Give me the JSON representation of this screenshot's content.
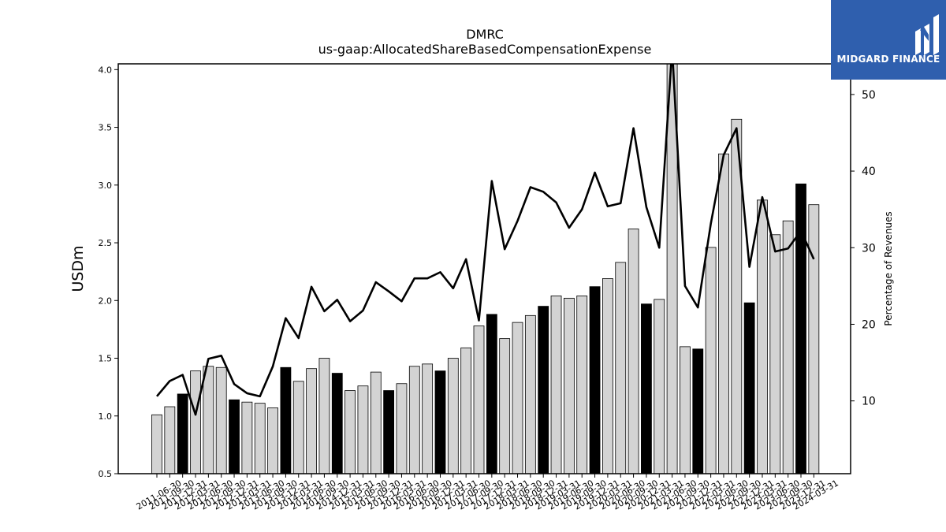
{
  "chart_data": {
    "type": "bar",
    "title": "DMRC",
    "subtitle": "us-gaap:AllocatedShareBasedCompensationExpense",
    "ylabel": "USDm",
    "y2label": "Percentage of Revenues",
    "ylim": [
      0.5,
      4.05
    ],
    "y2lim": [
      0.5,
      54.0
    ],
    "yticks": [
      "0.5",
      "1.0",
      "1.5",
      "2.0",
      "2.5",
      "3.0",
      "3.5",
      "4.0"
    ],
    "y2ticks": [
      "10",
      "20",
      "30",
      "40",
      "50"
    ],
    "categories": [
      "2011-06-30",
      "2011-09-30",
      "2011-12-31",
      "2012-03-31",
      "2012-06-30",
      "2012-09-30",
      "2012-12-31",
      "2013-03-31",
      "2013-06-30",
      "2013-09-30",
      "2013-12-31",
      "2014-03-31",
      "2014-06-30",
      "2014-09-30",
      "2014-12-31",
      "2015-03-31",
      "2015-06-30",
      "2015-09-30",
      "2015-12-31",
      "2016-03-31",
      "2016-06-30",
      "2016-09-30",
      "2016-12-31",
      "2017-03-31",
      "2017-06-30",
      "2017-09-30",
      "2017-12-31",
      "2018-03-31",
      "2018-06-30",
      "2018-09-30",
      "2018-12-31",
      "2019-03-31",
      "2019-06-30",
      "2019-09-30",
      "2019-12-31",
      "2020-03-31",
      "2020-06-30",
      "2020-09-30",
      "2020-12-31",
      "2021-03-31",
      "2021-06-30",
      "2021-09-30",
      "2021-12-31",
      "2022-03-31",
      "2022-06-30",
      "2022-09-30",
      "2022-12-31",
      "2023-03-31",
      "2023-06-30",
      "2023-09-30",
      "2023-12-31",
      "2024-03-31"
    ],
    "series": [
      {
        "values": [
          1.01,
          1.08,
          1.19,
          1.39,
          1.43,
          1.42,
          1.14,
          1.12,
          1.11,
          1.07,
          1.42,
          1.3,
          1.41,
          1.5,
          1.37,
          1.22,
          1.26,
          1.38,
          1.22,
          1.28,
          1.43,
          1.45,
          1.39,
          1.5,
          1.59,
          1.78,
          1.88,
          1.67,
          1.81,
          1.87,
          1.95,
          2.04,
          2.02,
          2.04,
          2.12,
          2.19,
          2.33,
          2.62,
          1.97,
          2.01,
          4.1,
          1.6,
          1.58,
          2.46,
          3.27,
          3.57,
          1.98,
          2.87,
          2.57,
          2.69,
          3.01,
          2.83
        ],
        "highlight": [
          false,
          false,
          true,
          false,
          false,
          false,
          true,
          false,
          false,
          false,
          true,
          false,
          false,
          false,
          true,
          false,
          false,
          false,
          true,
          false,
          false,
          false,
          true,
          false,
          false,
          false,
          true,
          false,
          false,
          false,
          true,
          false,
          false,
          false,
          true,
          false,
          false,
          false,
          true,
          false,
          false,
          false,
          true,
          false,
          false,
          false,
          true,
          false,
          false,
          false,
          true,
          false
        ]
      },
      {
        "axis": "right",
        "values": [
          10.6,
          12.6,
          13.4,
          8.2,
          15.5,
          15.9,
          12.2,
          11.0,
          10.6,
          14.5,
          20.8,
          18.2,
          24.9,
          21.7,
          23.2,
          20.4,
          21.8,
          25.5,
          24.3,
          23.0,
          26.0,
          26.0,
          26.8,
          24.7,
          28.5,
          20.5,
          38.7,
          29.8,
          33.5,
          37.9,
          37.3,
          35.9,
          32.6,
          35.0,
          39.8,
          35.4,
          35.8,
          45.6,
          35.3,
          30.0,
          56.0,
          25.0,
          22.2,
          33.1,
          42.1,
          45.6,
          27.5,
          36.6,
          29.5,
          29.9,
          32.2,
          28.5
        ]
      }
    ],
    "colors": {
      "bar": "#d3d3d3",
      "bar_highlight": "#000000",
      "line": "#000000"
    }
  },
  "logo": {
    "text": "MIDGARD FINANCE",
    "color": "#2f5fae"
  }
}
